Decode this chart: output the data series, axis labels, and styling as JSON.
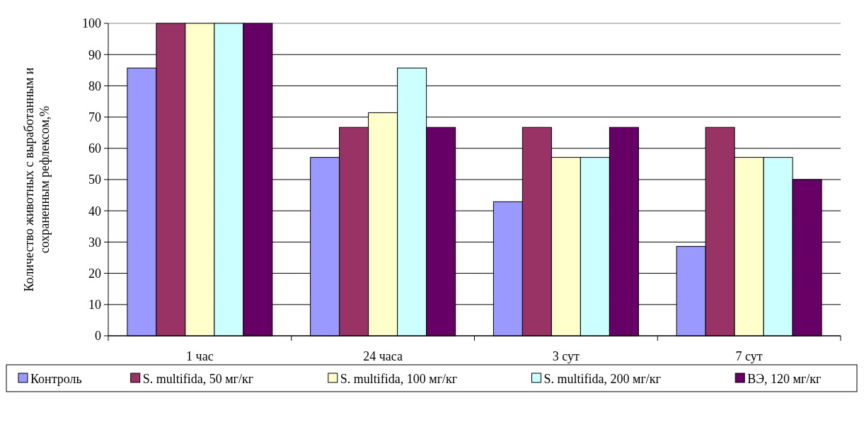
{
  "chart_data": {
    "type": "bar",
    "ylabel": "Количество животных с выработанным и сохраненным рефлексом,%",
    "categories": [
      "1 час",
      "24 часа",
      "3 сут",
      "7 сут"
    ],
    "series": [
      {
        "name": "Контроль",
        "color": "#9999ff",
        "values": [
          85.7,
          57.1,
          42.9,
          28.6
        ]
      },
      {
        "name": "S. multifida, 50 мг/кг",
        "color": "#993366",
        "values": [
          100,
          66.7,
          66.7,
          66.7
        ]
      },
      {
        "name": "S. multifida, 100 мг/кг",
        "color": "#ffffcc",
        "values": [
          100,
          71.4,
          57.1,
          57.1
        ]
      },
      {
        "name": "S. multifida, 200 мг/кг",
        "color": "#ccffff",
        "values": [
          100,
          85.7,
          57.1,
          57.1
        ]
      },
      {
        "name": "ВЭ, 120 мг/кг",
        "color": "#660066",
        "values": [
          100,
          66.7,
          66.7,
          50
        ]
      }
    ],
    "ylim": [
      0,
      100
    ],
    "yticks": [
      0,
      10,
      20,
      30,
      40,
      50,
      60,
      70,
      80,
      90,
      100
    ],
    "grid": "y",
    "legend": "bottom"
  }
}
